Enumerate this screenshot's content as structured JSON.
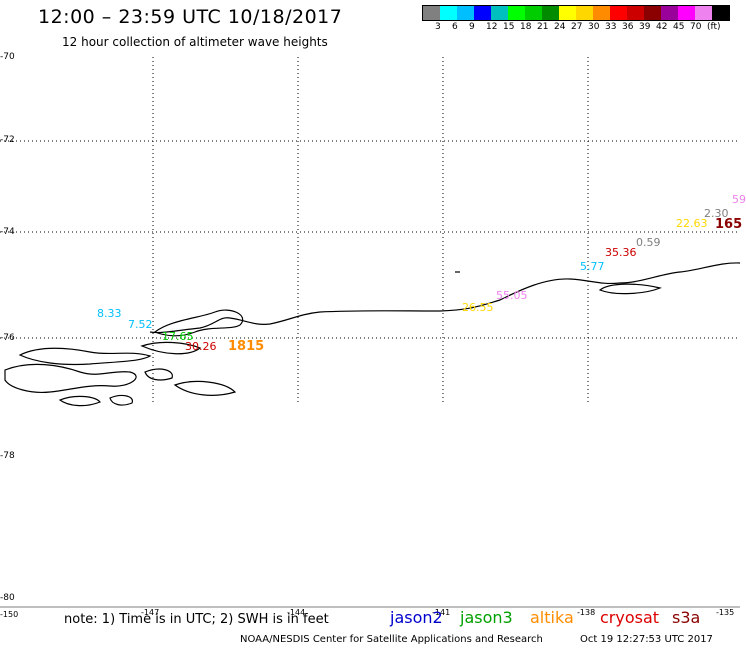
{
  "header": {
    "title": "12:00 – 23:59 UTC 10/18/2017",
    "subtitle": "12 hour collection of altimeter wave heights"
  },
  "legend": {
    "colors": [
      "#808080",
      "#00ffff",
      "#00bfff",
      "#0000ff",
      "#00bfbf",
      "#00ff00",
      "#00cd00",
      "#008b00",
      "#ffff00",
      "#ffd700",
      "#ff8c00",
      "#ff0000",
      "#cd0000",
      "#8b0000",
      "#9a009a",
      "#ff00ff",
      "#ee82ee",
      "#000000"
    ],
    "labels": [
      "3",
      "6",
      "9",
      "12",
      "15",
      "18",
      "21",
      "24",
      "27",
      "30",
      "33",
      "36",
      "39",
      "42",
      "45",
      "70",
      "(ft)"
    ]
  },
  "axes": {
    "lat_labels": [
      "-70",
      "-72",
      "-74",
      "-76",
      "-78",
      "-80"
    ],
    "lon_labels": [
      "-150",
      "-147",
      "-144",
      "-141",
      "-138",
      "-135"
    ]
  },
  "observations": [
    {
      "text": "8.33",
      "color": "#00bfff"
    },
    {
      "text": "7.52",
      "color": "#00bfff"
    },
    {
      "text": "17.65",
      "color": "#00cd00"
    },
    {
      "text": "30.26",
      "color": "#cd0000"
    },
    {
      "text": "1815",
      "color": "#ff8c00"
    },
    {
      "text": "26.55",
      "color": "#ffd700"
    },
    {
      "text": "55.05",
      "color": "#ee82ee"
    },
    {
      "text": "5.77",
      "color": "#00bfff"
    },
    {
      "text": "35.36",
      "color": "#cd0000"
    },
    {
      "text": "0.59",
      "color": "#808080"
    },
    {
      "text": "22.63",
      "color": "#ffd700"
    },
    {
      "text": "2.30",
      "color": "#808080"
    },
    {
      "text": "165",
      "color": "#8b0000"
    },
    {
      "text": "59",
      "color": "#ee82ee"
    }
  ],
  "footer": {
    "note": "note: 1) Time is in UTC; 2) SWH is in feet",
    "satellites": [
      {
        "name": "jason2",
        "color": "#0000cd"
      },
      {
        "name": "jason3",
        "color": "#00a000"
      },
      {
        "name": "altika",
        "color": "#ff8c00"
      },
      {
        "name": "cryosat",
        "color": "#dd0000"
      },
      {
        "name": "s3a",
        "color": "#8b0000"
      }
    ],
    "credit": "NOAA/NESDIS Center for Satellite Applications and Research",
    "timestamp": "Oct 19 12:27:53 UTC 2017"
  }
}
